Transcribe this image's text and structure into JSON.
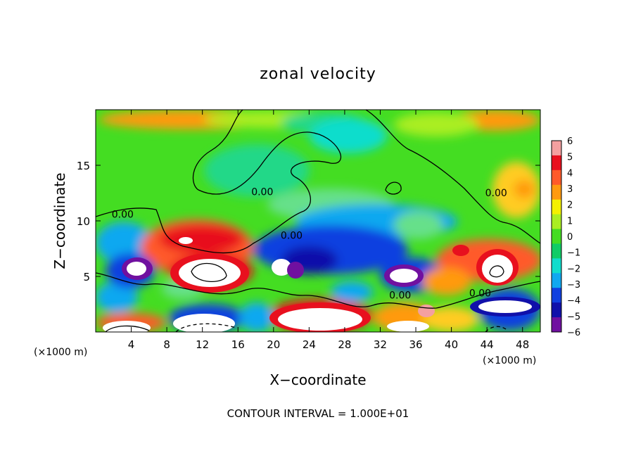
{
  "chart_data": {
    "type": "heatmap",
    "title": "zonal velocity",
    "xlabel": "X−coordinate",
    "ylabel": "Z−coordinate",
    "x_unit": "(×1000 m)",
    "y_unit": "(×1000 m)",
    "xlim": [
      0,
      50
    ],
    "ylim": [
      0,
      20
    ],
    "x_ticks": [
      4,
      8,
      12,
      16,
      20,
      24,
      28,
      32,
      36,
      40,
      44,
      48
    ],
    "y_ticks": [
      5,
      10,
      15
    ],
    "colorbar": {
      "min": -6,
      "max": 6,
      "ticks": [
        "6",
        "5",
        "4",
        "3",
        "2",
        "1",
        "0",
        "−1",
        "−2",
        "−3",
        "−4",
        "−5",
        "−6"
      ],
      "colors": [
        "#f4a0a0",
        "#e8101e",
        "#ff5a2a",
        "#ff9a10",
        "#f4f000",
        "#aaee22",
        "#44dd22",
        "#10cc66",
        "#10ddcc",
        "#10a8f0",
        "#1040e0",
        "#1010aa",
        "#7010a0"
      ]
    },
    "contour_labels": [
      {
        "text": "0.00",
        "x": 1.8,
        "z": 10.3
      },
      {
        "text": "0.00",
        "x": 17.5,
        "z": 12.3
      },
      {
        "text": "0.00",
        "x": 20.8,
        "z": 8.4
      },
      {
        "text": "0.00",
        "x": 43.8,
        "z": 12.2
      },
      {
        "text": "0.00",
        "x": 33.0,
        "z": 3.0
      },
      {
        "text": "0.00",
        "x": 42.0,
        "z": 3.2
      }
    ],
    "footnote": "CONTOUR INTERVAL = 1.000E+01",
    "grid": false
  }
}
